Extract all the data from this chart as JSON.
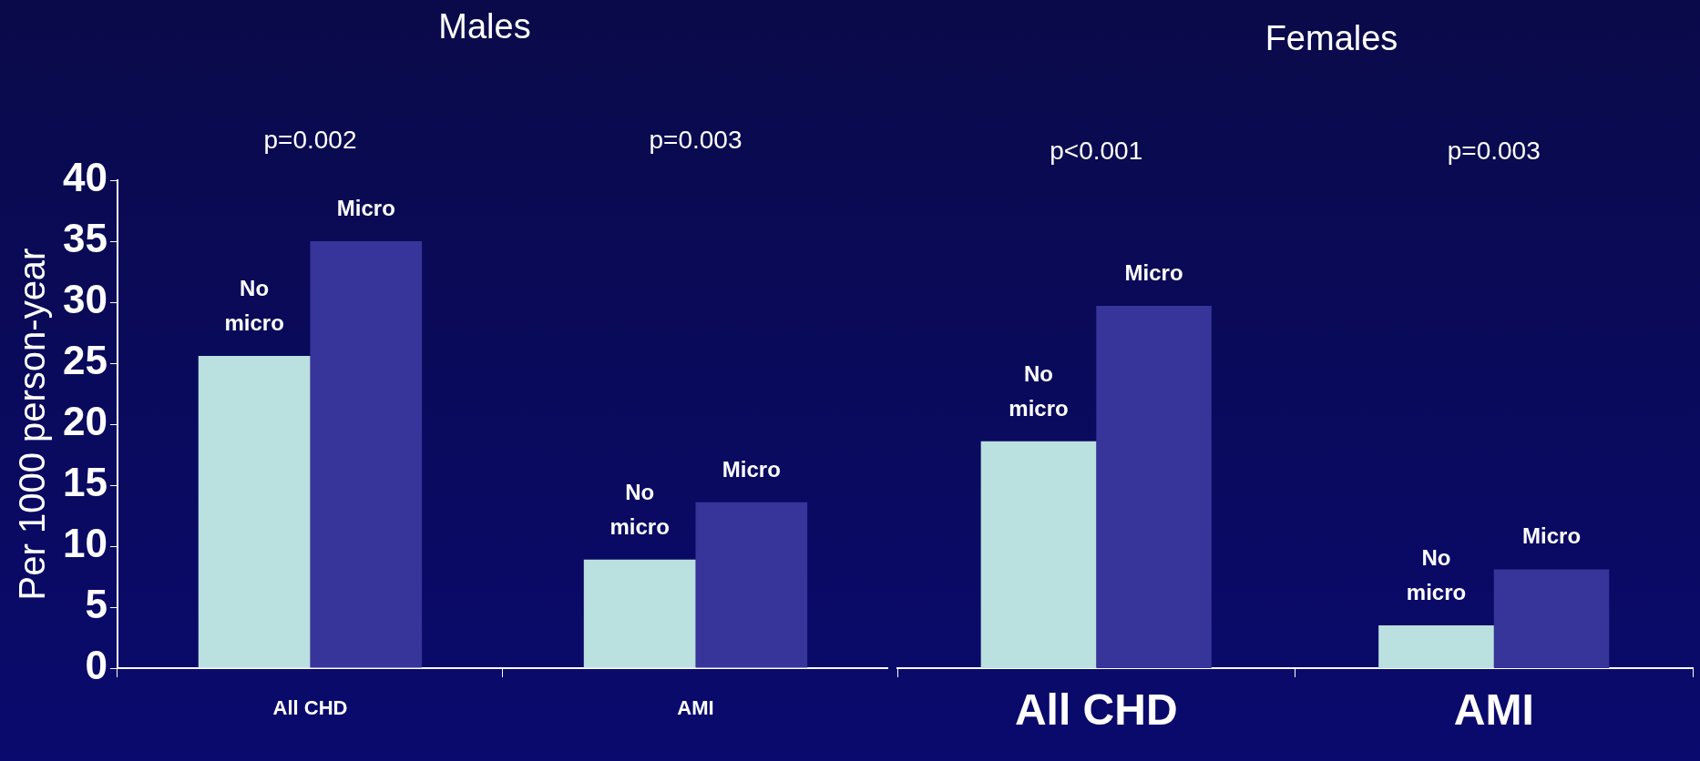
{
  "chart_data": [
    {
      "type": "bar",
      "title": "Males",
      "ylabel": "Per 1000 person-year",
      "categories": [
        "All CHD",
        "AMI"
      ],
      "series": [
        {
          "name": "No micro",
          "color": "#bbe0e0",
          "values": [
            25.6,
            8.9
          ]
        },
        {
          "name": "Micro",
          "color": "#37349a",
          "values": [
            35.0,
            13.6
          ]
        }
      ],
      "ylim": [
        0,
        40
      ],
      "yticks": [
        0,
        5,
        10,
        15,
        20,
        25,
        30,
        35,
        40
      ],
      "grid": false,
      "legend": false,
      "annotations": [
        "p=0.002",
        "p=0.003"
      ]
    },
    {
      "type": "bar",
      "title": "Females",
      "categories": [
        "All CHD",
        "AMI"
      ],
      "series": [
        {
          "name": "No micro",
          "color": "#bbe0e0",
          "values": [
            18.6,
            3.5
          ]
        },
        {
          "name": "Micro",
          "color": "#37349a",
          "values": [
            29.7,
            8.1
          ]
        }
      ],
      "ylim": [
        0,
        40
      ],
      "yticks": [
        0,
        5,
        10,
        15,
        20,
        25,
        30,
        35,
        40
      ],
      "grid": false,
      "legend": false,
      "tick_labels": "x",
      "annotations": [
        "p<0.001",
        "p=0.003"
      ]
    }
  ]
}
